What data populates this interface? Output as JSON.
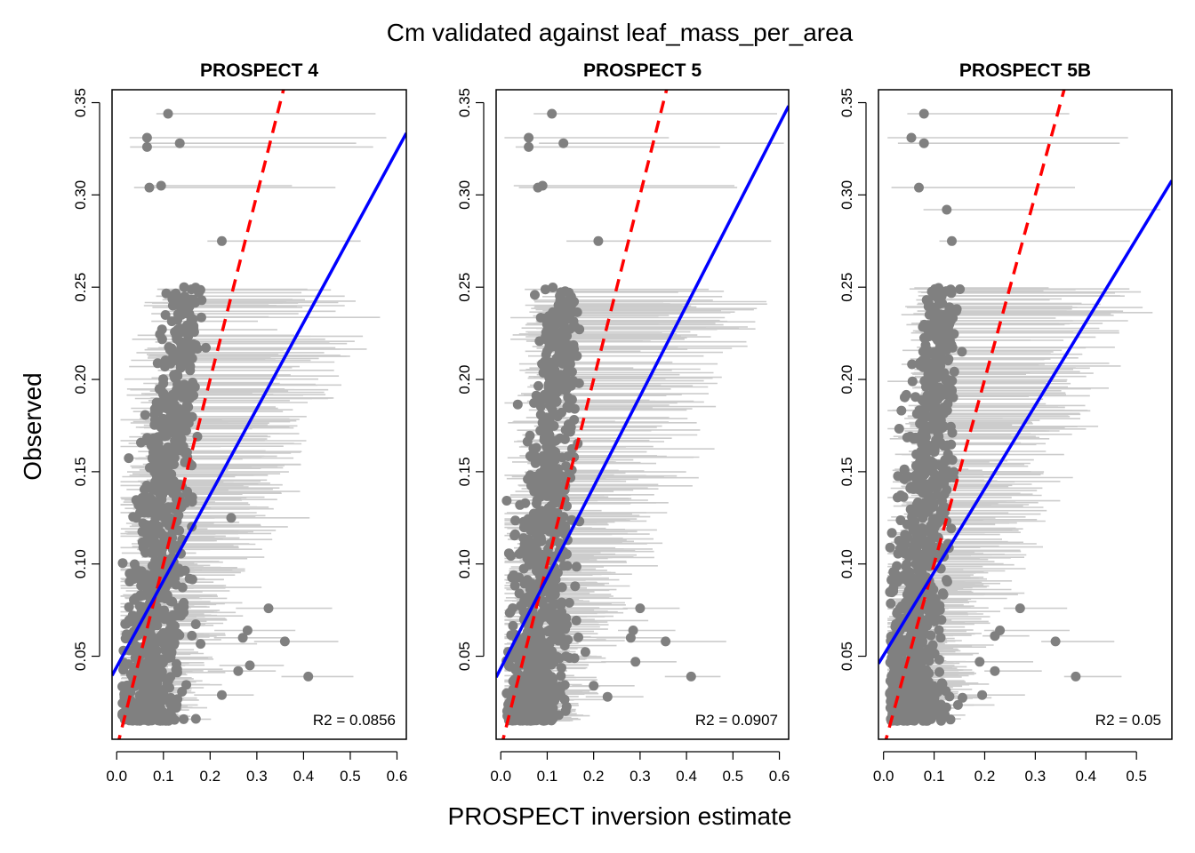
{
  "figure": {
    "title": "Cm validated against leaf_mass_per_area",
    "xlabel": "PROSPECT inversion estimate",
    "ylabel": "Observed"
  },
  "colors": {
    "points": "#808080",
    "error_bars": "#cccccc",
    "one_to_one_line": "#ff0000",
    "fit_line": "#0000ff",
    "axes": "#000000"
  },
  "chart_data": [
    {
      "type": "scatter",
      "title": "PROSPECT 4",
      "xlim": [
        -0.01,
        0.62
      ],
      "ylim": [
        0.005,
        0.357
      ],
      "x_ticks": [
        0.0,
        0.1,
        0.2,
        0.3,
        0.4,
        0.5,
        0.6
      ],
      "x_tick_labels": [
        "0.0",
        "0.1",
        "0.2",
        "0.3",
        "0.4",
        "0.5",
        "0.6"
      ],
      "y_ticks": [
        0.05,
        0.1,
        0.15,
        0.2,
        0.25,
        0.3,
        0.35
      ],
      "y_tick_labels": [
        "0.05",
        "0.10",
        "0.15",
        "0.20",
        "0.25",
        "0.30",
        "0.35"
      ],
      "annotation": "R2 =  0.0856",
      "fit_line": {
        "intercept": 0.0442,
        "slope": 0.4666
      },
      "one_to_one_line": {
        "intercept": 0.0,
        "slope": 1.0
      },
      "outliers": [
        [
          0.11,
          0.344
        ],
        [
          0.065,
          0.331
        ],
        [
          0.065,
          0.326
        ],
        [
          0.135,
          0.328
        ],
        [
          0.07,
          0.304
        ],
        [
          0.095,
          0.305
        ],
        [
          0.225,
          0.275
        ],
        [
          0.36,
          0.058
        ],
        [
          0.41,
          0.039
        ],
        [
          0.325,
          0.076
        ],
        [
          0.28,
          0.064
        ],
        [
          0.27,
          0.06
        ],
        [
          0.285,
          0.045
        ],
        [
          0.26,
          0.042
        ],
        [
          0.225,
          0.029
        ],
        [
          0.245,
          0.125
        ]
      ],
      "cloud": {
        "x_mean": 0.092,
        "x_sd": 0.034,
        "x_y_slope": 0.35,
        "y_min": 0.015,
        "y_max": 0.25,
        "n": 900
      },
      "error_bars": {
        "left_offset": 0.06,
        "right_scale": 1.55,
        "right_extra": 0.04,
        "right_max": 0.6
      }
    },
    {
      "type": "scatter",
      "title": "PROSPECT 5",
      "xlim": [
        -0.01,
        0.62
      ],
      "ylim": [
        0.005,
        0.357
      ],
      "x_ticks": [
        0.0,
        0.1,
        0.2,
        0.3,
        0.4,
        0.5,
        0.6
      ],
      "x_tick_labels": [
        "0.0",
        "0.1",
        "0.2",
        "0.3",
        "0.4",
        "0.5",
        "0.6"
      ],
      "y_ticks": [
        0.05,
        0.1,
        0.15,
        0.2,
        0.25,
        0.3,
        0.35
      ],
      "y_tick_labels": [
        "0.05",
        "0.10",
        "0.15",
        "0.20",
        "0.25",
        "0.30",
        "0.35"
      ],
      "annotation": "R2 =  0.0907",
      "fit_line": {
        "intercept": 0.0435,
        "slope": 0.4915
      },
      "one_to_one_line": {
        "intercept": 0.0,
        "slope": 1.0
      },
      "outliers": [
        [
          0.11,
          0.344
        ],
        [
          0.06,
          0.331
        ],
        [
          0.06,
          0.326
        ],
        [
          0.135,
          0.328
        ],
        [
          0.08,
          0.304
        ],
        [
          0.09,
          0.305
        ],
        [
          0.21,
          0.275
        ],
        [
          0.355,
          0.058
        ],
        [
          0.41,
          0.039
        ],
        [
          0.3,
          0.076
        ],
        [
          0.285,
          0.064
        ],
        [
          0.28,
          0.06
        ],
        [
          0.29,
          0.047
        ],
        [
          0.23,
          0.028
        ],
        [
          0.2,
          0.034
        ]
      ],
      "cloud": {
        "x_mean": 0.088,
        "x_sd": 0.034,
        "x_y_slope": 0.32,
        "y_min": 0.015,
        "y_max": 0.25,
        "n": 900
      },
      "error_bars": {
        "left_offset": 0.055,
        "right_scale": 1.6,
        "right_extra": 0.05,
        "right_max": 0.61
      }
    },
    {
      "type": "scatter",
      "title": "PROSPECT 5B",
      "xlim": [
        -0.01,
        0.57
      ],
      "ylim": [
        0.005,
        0.357
      ],
      "x_ticks": [
        0.0,
        0.1,
        0.2,
        0.3,
        0.4,
        0.5
      ],
      "x_tick_labels": [
        "0.0",
        "0.1",
        "0.2",
        "0.3",
        "0.4",
        "0.5"
      ],
      "y_ticks": [
        0.05,
        0.1,
        0.15,
        0.2,
        0.25,
        0.3,
        0.35
      ],
      "y_tick_labels": [
        "0.05",
        "0.10",
        "0.15",
        "0.20",
        "0.25",
        "0.30",
        "0.35"
      ],
      "annotation": "R2 =  0.05",
      "fit_line": {
        "intercept": 0.0505,
        "slope": 0.4514
      },
      "one_to_one_line": {
        "intercept": 0.0,
        "slope": 1.0
      },
      "outliers": [
        [
          0.08,
          0.344
        ],
        [
          0.055,
          0.331
        ],
        [
          0.08,
          0.328
        ],
        [
          0.07,
          0.304
        ],
        [
          0.125,
          0.292
        ],
        [
          0.135,
          0.275
        ],
        [
          0.155,
          0.215
        ],
        [
          0.34,
          0.058
        ],
        [
          0.38,
          0.039
        ],
        [
          0.27,
          0.076
        ],
        [
          0.23,
          0.064
        ],
        [
          0.22,
          0.061
        ],
        [
          0.22,
          0.042
        ],
        [
          0.195,
          0.029
        ],
        [
          0.19,
          0.047
        ]
      ],
      "cloud": {
        "x_mean": 0.072,
        "x_sd": 0.03,
        "x_y_slope": 0.3,
        "y_min": 0.015,
        "y_max": 0.25,
        "n": 900
      },
      "error_bars": {
        "left_offset": 0.04,
        "right_scale": 1.55,
        "right_extra": 0.04,
        "right_max": 0.55
      }
    }
  ]
}
